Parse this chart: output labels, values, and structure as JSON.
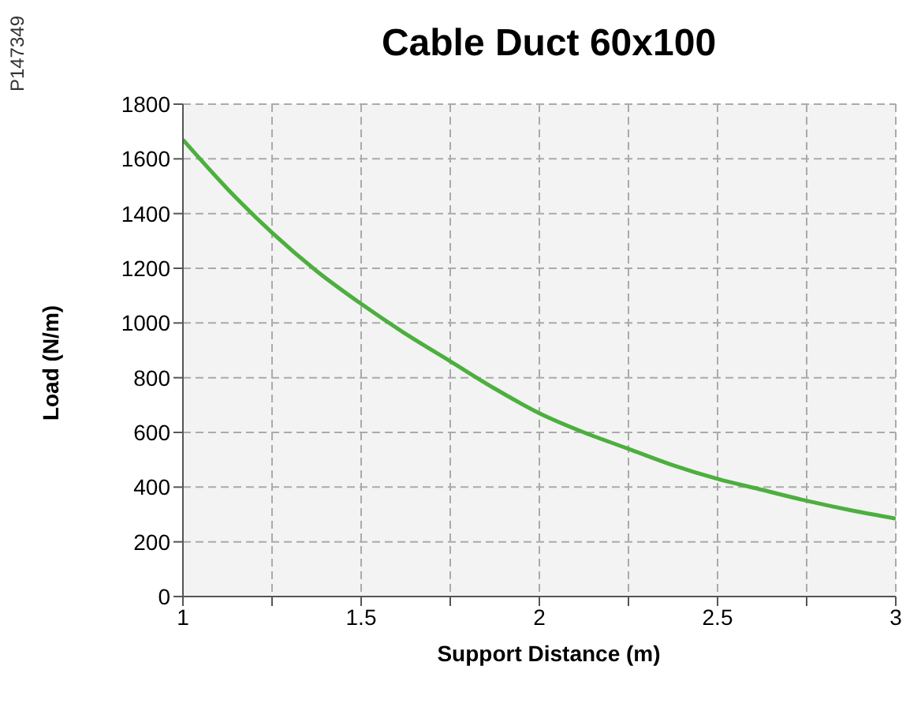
{
  "chart_data": {
    "type": "line",
    "title": "Cable Duct 60x100",
    "xlabel": "Support Distance (m)",
    "ylabel": "Load (N/m)",
    "annotations": [
      "P147349"
    ],
    "x": [
      1,
      1.125,
      1.25,
      1.375,
      1.5,
      1.625,
      1.75,
      1.875,
      2,
      2.125,
      2.25,
      2.375,
      2.5,
      2.625,
      2.75,
      2.875,
      3
    ],
    "series": [
      {
        "color": "#4caf3e",
        "values": [
          1670,
          1490,
          1330,
          1190,
          1070,
          960,
          860,
          760,
          670,
          600,
          540,
          480,
          430,
          390,
          350,
          315,
          285
        ]
      }
    ],
    "xlim": [
      1,
      3
    ],
    "xticks": [
      1,
      {
        "value": 1.25,
        "label": null
      },
      1.5,
      {
        "value": 1.75,
        "label": null
      },
      2,
      {
        "value": 2.25,
        "label": null
      },
      2.5,
      {
        "value": 2.75,
        "label": null
      },
      3
    ],
    "ylim": [
      0,
      1800
    ],
    "yticks": [
      0,
      200,
      400,
      600,
      800,
      1000,
      1200,
      1400,
      1600,
      1800
    ],
    "grid": true,
    "legend": false,
    "marker": "none",
    "line_style": "solid"
  }
}
